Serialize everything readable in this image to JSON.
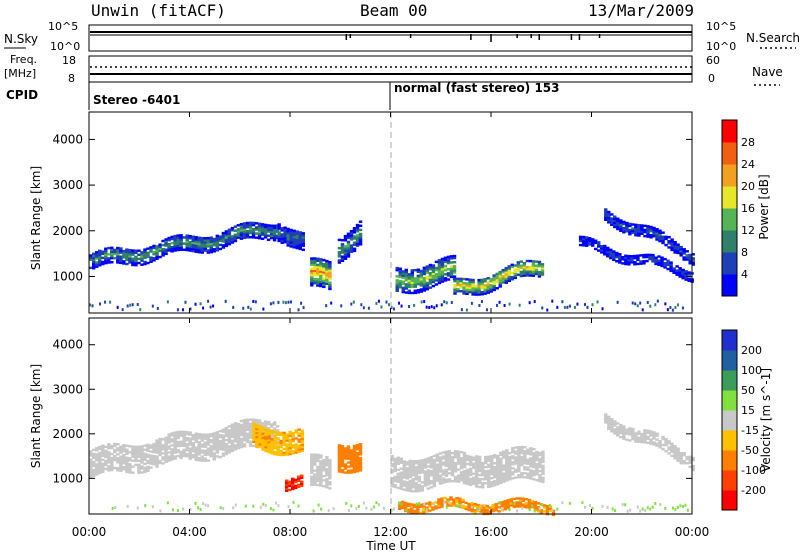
{
  "header": {
    "station": "Unwin (fitACF)",
    "beam": "Beam 00",
    "date": "13/Mar/2009"
  },
  "noise_panel": {
    "left_label": "N.Sky",
    "right_label": "N.Search",
    "left_ticks": [
      "10^5",
      "10^0"
    ],
    "right_ticks": [
      "10^5",
      "10^0"
    ]
  },
  "freq_panel": {
    "left_label_1": "Freq.",
    "left_label_2": "[MHz]",
    "right_label": "Nave",
    "left_ticks": [
      "18",
      "8"
    ],
    "right_ticks": [
      "60",
      "0"
    ]
  },
  "cpid_panel": {
    "label": "CPID",
    "mode_1": "Stereo -6401",
    "mode_2": "normal (fast stereo) 153"
  },
  "x_axis": {
    "label": "Time UT",
    "ticks": [
      "00:00",
      "04:00",
      "08:00",
      "12:00",
      "16:00",
      "20:00",
      "00:00"
    ]
  },
  "power_panel": {
    "ylabel": "Slant Range [km]",
    "yticks": [
      "1000",
      "2000",
      "3000",
      "4000"
    ],
    "scale_label": "Power [dB]",
    "scale_ticks": [
      "4",
      "8",
      "12",
      "16",
      "20",
      "24",
      "28"
    ],
    "scale_colors": [
      "#0000ff",
      "#1e3fb8",
      "#2f7f6a",
      "#55b455",
      "#e6e62a",
      "#f2a020",
      "#f06010",
      "#ff0000"
    ]
  },
  "velocity_panel": {
    "ylabel": "Slant Range [km]",
    "yticks": [
      "1000",
      "2000",
      "3000",
      "4000"
    ],
    "scale_label": "Velocity [m s^-1]",
    "scale_ticks": [
      "-200",
      "-100",
      "-50",
      "-15",
      "15",
      "50",
      "100",
      "200"
    ],
    "scale_colors": [
      "#ff0000",
      "#ff4000",
      "#ff8000",
      "#ffc000",
      "#c8c8c8",
      "#80e040",
      "#3c9c5a",
      "#2060a0",
      "#2030d0"
    ]
  },
  "chart_data": [
    {
      "type": "heatmap",
      "title": "Power",
      "xlabel": "Time UT",
      "ylabel": "Slant Range [km]",
      "xlim": [
        0,
        24
      ],
      "ylim": [
        200,
        4600
      ],
      "colorbar_label": "Power [dB]",
      "colorbar_ticks": [
        4,
        8,
        12,
        16,
        20,
        24,
        28
      ],
      "bands": [
        {
          "t0": 0.0,
          "t1": 7.5,
          "r_start": 1300,
          "r_end": 2050,
          "width": 350,
          "level": 10
        },
        {
          "t0": 7.5,
          "t1": 8.5,
          "r_start": 2050,
          "r_end": 1700,
          "width": 400,
          "level": 8
        },
        {
          "t0": 8.8,
          "t1": 9.6,
          "r_start": 1000,
          "r_end": 1000,
          "width": 600,
          "level": 20
        },
        {
          "t0": 9.9,
          "t1": 10.8,
          "r_start": 1600,
          "r_end": 2000,
          "width": 500,
          "level": 10
        },
        {
          "t0": 12.2,
          "t1": 14.5,
          "r_start": 900,
          "r_end": 1100,
          "width": 500,
          "level": 14
        },
        {
          "t0": 14.5,
          "t1": 18.0,
          "r_start": 700,
          "r_end": 1200,
          "width": 350,
          "level": 18
        },
        {
          "t0": 20.5,
          "t1": 24.0,
          "r_start": 2350,
          "r_end": 1450,
          "width": 250,
          "level": 6
        },
        {
          "t0": 19.5,
          "t1": 24.0,
          "r_start": 1700,
          "r_end": 1050,
          "width": 200,
          "level": 5
        }
      ]
    },
    {
      "type": "heatmap",
      "title": "Velocity",
      "xlabel": "Time UT",
      "ylabel": "Slant Range [km]",
      "xlim": [
        0,
        24
      ],
      "ylim": [
        200,
        4600
      ],
      "colorbar_label": "Velocity [m s^-1]",
      "colorbar_ticks": [
        -200,
        -100,
        -50,
        -15,
        15,
        50,
        100,
        200
      ],
      "bands": [
        {
          "t0": 0.0,
          "t1": 7.5,
          "r_start": 1300,
          "r_end": 2050,
          "width": 600,
          "level": 0
        },
        {
          "t0": 6.5,
          "t1": 8.5,
          "r_start": 1900,
          "r_end": 1800,
          "width": 500,
          "level": -40
        },
        {
          "t0": 8.8,
          "t1": 9.6,
          "r_start": 1100,
          "r_end": 1100,
          "width": 700,
          "level": 0
        },
        {
          "t0": 7.8,
          "t1": 8.4,
          "r_start": 900,
          "r_end": 900,
          "width": 250,
          "level": -200
        },
        {
          "t0": 9.9,
          "t1": 10.8,
          "r_start": 1500,
          "r_end": 1500,
          "width": 600,
          "level": -80
        },
        {
          "t0": 12.0,
          "t1": 18.0,
          "r_start": 1100,
          "r_end": 1300,
          "width": 700,
          "level": 0
        },
        {
          "t0": 12.3,
          "t1": 18.5,
          "r_start": 400,
          "r_end": 350,
          "width": 200,
          "level": -60
        },
        {
          "t0": 20.5,
          "t1": 24.0,
          "r_start": 2300,
          "r_end": 1400,
          "width": 300,
          "level": 0
        }
      ]
    }
  ]
}
